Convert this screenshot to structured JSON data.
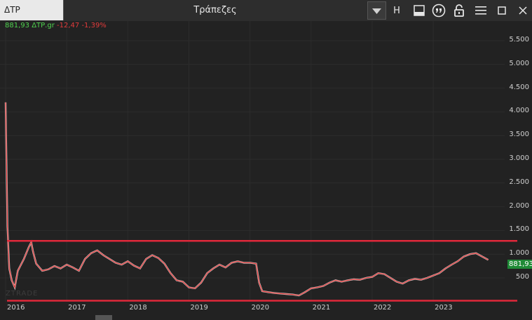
{
  "toolbar": {
    "symbol_value": "ΔΤΡ",
    "title": "Τράπεζες",
    "h_label": "H"
  },
  "quote": {
    "last": "881,93",
    "symbol": "ΔΤΡ.gr",
    "change": "-12,47",
    "change_pct": "-1,39%",
    "last_badge": "881,93"
  },
  "watermark": "ZTRADE",
  "colors": {
    "up": "#4fd24f",
    "down": "#e23b3b",
    "line": "#e0283a",
    "background": "#222222"
  },
  "chart_data": {
    "type": "line",
    "x_tick_labels": [
      "2016",
      "2017",
      "2018",
      "2019",
      "2020",
      "2021",
      "2022",
      "2023"
    ],
    "y_tick_labels": [
      "5.500",
      "5.000",
      "4.500",
      "4.000",
      "3.500",
      "3.000",
      "2.500",
      "2.000",
      "1.500",
      "1.000",
      "500"
    ],
    "ylim": [
      0,
      5800
    ],
    "xlim": [
      2016.0,
      2024.1
    ],
    "grid": true,
    "series": [
      {
        "x": [
          2016.0,
          2016.03,
          2016.06,
          2016.1,
          2016.15,
          2016.2,
          2016.3,
          2016.38,
          2016.42,
          2016.45,
          2016.5,
          2016.6,
          2016.7,
          2016.8,
          2016.9,
          2017.0,
          2017.1,
          2017.2,
          2017.3,
          2017.4,
          2017.5,
          2017.6,
          2017.7,
          2017.8,
          2017.9,
          2018.0,
          2018.1,
          2018.2,
          2018.3,
          2018.4,
          2018.5,
          2018.6,
          2018.7,
          2018.8,
          2018.9,
          2019.0,
          2019.1,
          2019.2,
          2019.3,
          2019.4,
          2019.5,
          2019.6,
          2019.7,
          2019.8,
          2019.9,
          2020.0,
          2020.1,
          2020.15,
          2020.2,
          2020.3,
          2020.4,
          2020.5,
          2020.6,
          2020.7,
          2020.8,
          2020.9,
          2021.0,
          2021.1,
          2021.2,
          2021.3,
          2021.4,
          2021.5,
          2021.6,
          2021.7,
          2021.8,
          2021.9,
          2022.0,
          2022.1,
          2022.2,
          2022.3,
          2022.4,
          2022.5,
          2022.6,
          2022.7,
          2022.8,
          2022.9,
          2023.0,
          2023.1,
          2023.2,
          2023.3,
          2023.4,
          2023.5,
          2023.6,
          2023.7,
          2023.8,
          2023.9
        ],
        "y": [
          4200,
          1600,
          700,
          450,
          300,
          650,
          900,
          1150,
          1250,
          1050,
          800,
          650,
          680,
          750,
          700,
          780,
          720,
          650,
          900,
          1020,
          1080,
          980,
          900,
          820,
          780,
          850,
          760,
          700,
          900,
          980,
          920,
          800,
          600,
          450,
          420,
          300,
          280,
          400,
          600,
          700,
          780,
          720,
          820,
          850,
          820,
          820,
          800,
          400,
          220,
          200,
          180,
          170,
          160,
          150,
          130,
          200,
          280,
          300,
          330,
          400,
          450,
          420,
          450,
          470,
          460,
          500,
          520,
          600,
          580,
          500,
          420,
          380,
          450,
          480,
          460,
          500,
          550,
          600,
          700,
          780,
          850,
          950,
          1000,
          1020,
          950,
          880
        ]
      }
    ],
    "support_resistance_levels": [
      1280,
      20
    ]
  }
}
